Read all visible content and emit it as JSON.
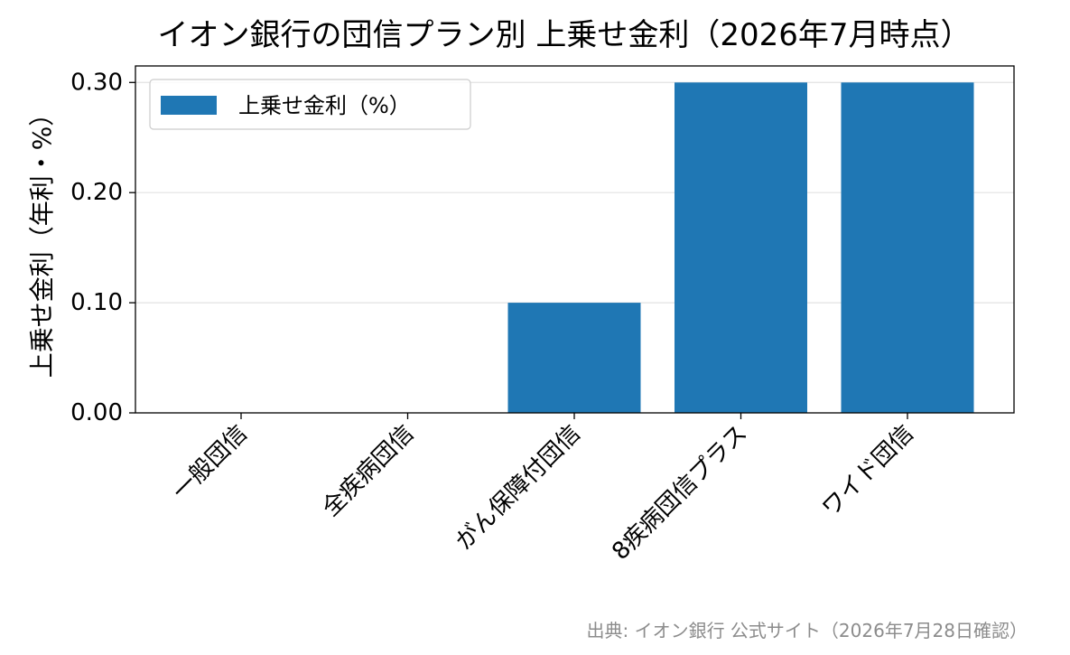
{
  "chart_data": {
    "type": "bar",
    "title": "イオン銀行の団信プラン別 上乗せ金利（2026年7月時点）",
    "ylabel": "上乗せ金利（年利・%）",
    "xlabel": "",
    "categories": [
      "一般団信",
      "全疾病団信",
      "がん保障付団信",
      "8疾病団信プラス",
      "ワイド団信"
    ],
    "series": [
      {
        "name": "上乗せ金利（%）",
        "values": [
          0.0,
          0.0,
          0.1,
          0.3,
          0.3
        ],
        "color": "#1f77b4"
      }
    ],
    "ylim": [
      0,
      0.315
    ],
    "yticks": [
      0.0,
      0.1,
      0.2,
      0.3
    ],
    "ytick_labels": [
      "0.00",
      "0.10",
      "0.20",
      "0.30"
    ],
    "grid": "horizontal",
    "legend_position": "upper-left"
  },
  "source_note": "出典: イオン銀行 公式サイト（2026年7月28日確認）"
}
